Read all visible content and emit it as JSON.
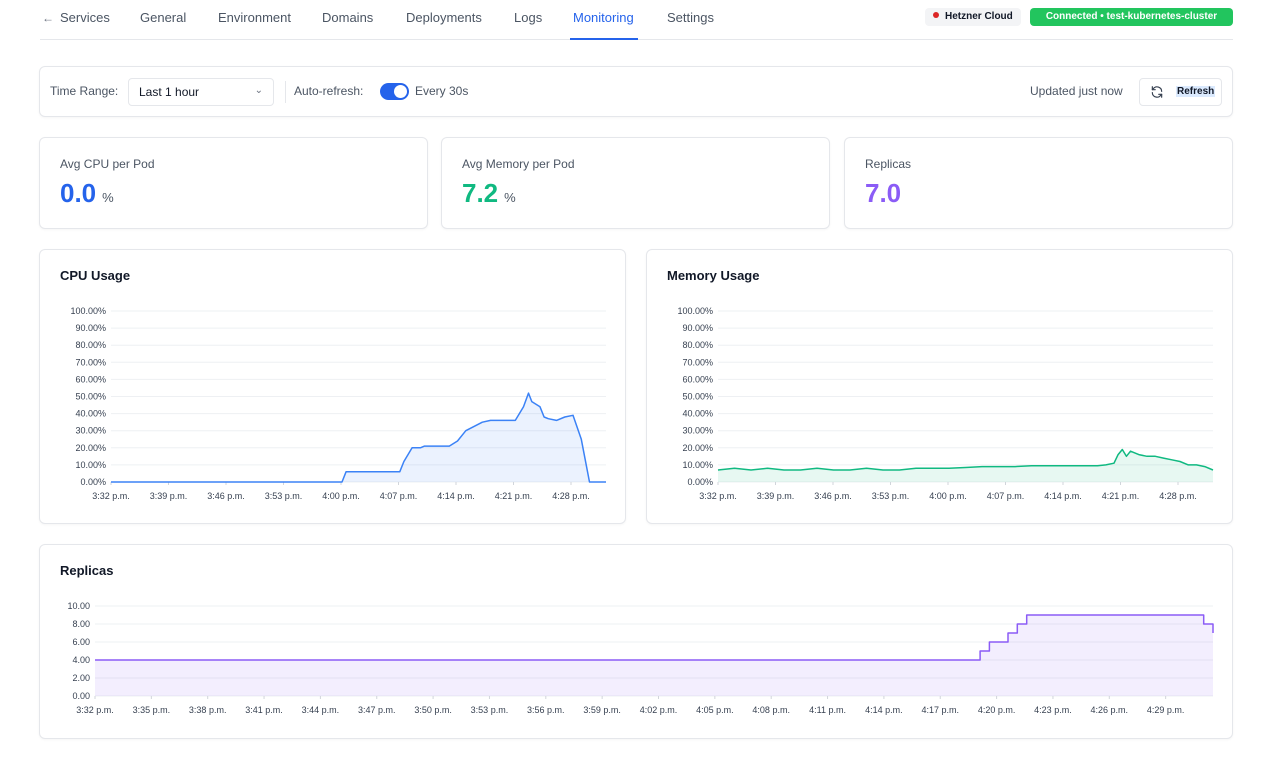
{
  "nav": {
    "items": [
      {
        "label": "Services",
        "active": false
      },
      {
        "label": "General",
        "active": false
      },
      {
        "label": "Environment",
        "active": false
      },
      {
        "label": "Domains",
        "active": false
      },
      {
        "label": "Deployments",
        "active": false
      },
      {
        "label": "Logs",
        "active": false
      },
      {
        "label": "Monitoring",
        "active": true
      },
      {
        "label": "Settings",
        "active": false
      }
    ],
    "provider": "Hetzner Cloud",
    "connection": "Connected • test-kubernetes-cluster"
  },
  "controls": {
    "time_range_label": "Time Range:",
    "time_range_value": "Last 1 hour",
    "auto_refresh_label": "Auto-refresh:",
    "auto_refresh_on": true,
    "auto_refresh_interval": "Every 30s",
    "updated_text": "Updated just now",
    "refresh_label": "Refresh"
  },
  "stats": {
    "cpu": {
      "label": "Avg CPU per Pod",
      "value": "0.0",
      "unit": "%"
    },
    "memory": {
      "label": "Avg Memory per Pod",
      "value": "7.2",
      "unit": "%"
    },
    "replicas": {
      "label": "Replicas",
      "value": "7.0"
    }
  },
  "colors": {
    "accent": "#2563eb",
    "cpu": "#3b82f6",
    "memory": "#10b981",
    "replicas": "#8b5cf6",
    "connected": "#22c55e",
    "provider_dot": "#dc2626"
  },
  "chart_data": [
    {
      "type": "area",
      "title": "CPU Usage",
      "x_ticks": [
        "3:32 p.m.",
        "3:39 p.m.",
        "3:46 p.m.",
        "3:53 p.m.",
        "4:00 p.m.",
        "4:07 p.m.",
        "4:14 p.m.",
        "4:21 p.m.",
        "4:28 p.m."
      ],
      "y_ticks": [
        "0.00%",
        "10.00%",
        "20.00%",
        "30.00%",
        "40.00%",
        "50.00%",
        "60.00%",
        "70.00%",
        "80.00%",
        "90.00%",
        "100.00%"
      ],
      "xlim": [
        0,
        60
      ],
      "ylim": [
        0,
        100
      ],
      "grid": true,
      "series": [
        {
          "x": [
            0,
            28,
            28.5,
            33,
            35,
            35.5,
            36.5,
            37.5,
            38,
            41,
            42,
            43,
            45,
            46,
            49,
            50,
            50.6,
            51,
            52,
            52.5,
            53,
            54,
            55,
            56,
            57,
            58,
            59,
            60
          ],
          "y": [
            0,
            0,
            6,
            6,
            6,
            12,
            20,
            20,
            21,
            21,
            24,
            30,
            35,
            36,
            36,
            44,
            52,
            47,
            44,
            38,
            37,
            36,
            38,
            39,
            25,
            0,
            0,
            0
          ]
        }
      ]
    },
    {
      "type": "area",
      "title": "Memory Usage",
      "x_ticks": [
        "3:32 p.m.",
        "3:39 p.m.",
        "3:46 p.m.",
        "3:53 p.m.",
        "4:00 p.m.",
        "4:07 p.m.",
        "4:14 p.m.",
        "4:21 p.m.",
        "4:28 p.m."
      ],
      "y_ticks": [
        "0.00%",
        "10.00%",
        "20.00%",
        "30.00%",
        "40.00%",
        "50.00%",
        "60.00%",
        "70.00%",
        "80.00%",
        "90.00%",
        "100.00%"
      ],
      "xlim": [
        0,
        60
      ],
      "ylim": [
        0,
        100
      ],
      "grid": true,
      "series": [
        {
          "x": [
            0,
            2,
            4,
            6,
            8,
            10,
            12,
            14,
            16,
            18,
            20,
            22,
            24,
            26,
            28,
            30,
            32,
            34,
            36,
            38,
            40,
            42,
            44,
            46,
            47,
            48,
            48.5,
            49,
            49.5,
            50,
            51,
            52,
            53,
            54,
            55,
            56,
            57,
            58,
            59,
            60
          ],
          "y": [
            7,
            8,
            7,
            8,
            7,
            7,
            8,
            7,
            7,
            8,
            7,
            7,
            8,
            8,
            8,
            8.5,
            9,
            9,
            9,
            9.5,
            9.5,
            9.5,
            9.5,
            9.5,
            10,
            11,
            16,
            19,
            15,
            18,
            16,
            15,
            15,
            14,
            13,
            12,
            10,
            10,
            9,
            7
          ]
        }
      ]
    },
    {
      "type": "line",
      "title": "Replicas",
      "x_ticks": [
        "3:32 p.m.",
        "3:35 p.m.",
        "3:38 p.m.",
        "3:41 p.m.",
        "3:44 p.m.",
        "3:47 p.m.",
        "3:50 p.m.",
        "3:53 p.m.",
        "3:56 p.m.",
        "3:59 p.m.",
        "4:02 p.m.",
        "4:05 p.m.",
        "4:08 p.m.",
        "4:11 p.m.",
        "4:14 p.m.",
        "4:17 p.m.",
        "4:20 p.m.",
        "4:23 p.m.",
        "4:26 p.m.",
        "4:29 p.m."
      ],
      "y_ticks": [
        "0.00",
        "2.00",
        "4.00",
        "6.00",
        "8.00",
        "10.00"
      ],
      "xlim": [
        0,
        60
      ],
      "ylim": [
        0,
        10
      ],
      "grid": true,
      "step": true,
      "series": [
        {
          "x": [
            0,
            47,
            47.5,
            48,
            49,
            49.5,
            50,
            51,
            59,
            59.5,
            60
          ],
          "y": [
            4,
            4,
            5,
            6,
            7,
            8,
            9,
            9,
            9,
            8,
            7
          ]
        }
      ]
    }
  ]
}
